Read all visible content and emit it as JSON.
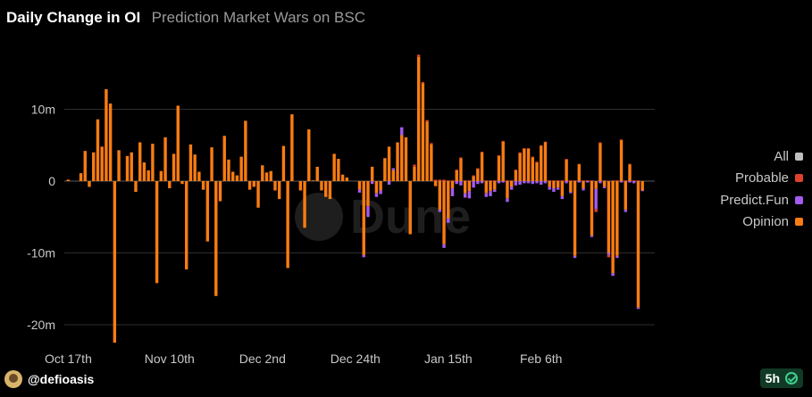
{
  "header": {
    "title": "Daily Change in OI",
    "subtitle": "Prediction Market Wars on BSC"
  },
  "footer": {
    "author": "@defioasis",
    "badge": "5h"
  },
  "watermark": "Dune",
  "colors": {
    "background": "#000000",
    "grid": "#2e2e2e",
    "opinion": "#f97c12",
    "predict_fun": "#a35bf0",
    "probable": "#e0412a",
    "all": "#bfbfbf"
  },
  "chart_data": {
    "type": "bar",
    "stacked": true,
    "title": "Daily Change in OI",
    "subtitle": "Prediction Market Wars on BSC",
    "xlabel": "",
    "ylabel": "",
    "ylim": [
      -23,
      18
    ],
    "y_ticks": [
      {
        "value": 10,
        "label": "10m"
      },
      {
        "value": 0,
        "label": "0"
      },
      {
        "value": -10,
        "label": "-10m"
      },
      {
        "value": -20,
        "label": "-20m"
      }
    ],
    "x_ticks": [
      {
        "index": 0,
        "label": "Oct 17th"
      },
      {
        "index": 24,
        "label": "Nov 10th"
      },
      {
        "index": 46,
        "label": "Dec 2nd"
      },
      {
        "index": 68,
        "label": "Dec 24th"
      },
      {
        "index": 90,
        "label": "Jan 15th"
      },
      {
        "index": 112,
        "label": "Feb 6th"
      }
    ],
    "legend": [
      "All",
      "Probable",
      "Predict.Fun",
      "Opinion"
    ],
    "legend_position": "right",
    "grid": true,
    "series": [
      {
        "name": "Opinion",
        "values": [
          0.2,
          0,
          0,
          1.1,
          4.2,
          -0.8,
          4,
          8.6,
          4.8,
          12.8,
          10.8,
          -22.5,
          4.3,
          0,
          3.5,
          4,
          -1.5,
          5.4,
          2.6,
          1.5,
          5.2,
          -14.2,
          1.4,
          6.1,
          -1,
          3.8,
          10.5,
          -0.4,
          -12.3,
          5.1,
          3.7,
          1.3,
          -1.2,
          -8.4,
          4.7,
          -16,
          -2.8,
          6.3,
          3,
          1.3,
          0.8,
          3.4,
          8.4,
          -1.2,
          -0.8,
          -3.7,
          2.2,
          1.2,
          1.4,
          -1.3,
          -2.5,
          4.9,
          -12.1,
          9.3,
          0,
          -1.3,
          -6.5,
          7.2,
          0.1,
          2,
          -1.3,
          -2.2,
          -2.5,
          3.8,
          3.1,
          0.9,
          0.5,
          0,
          0,
          -1.2,
          -10.3,
          -3.5,
          2,
          -1.7,
          -1.3,
          3.2,
          4.8,
          1.5,
          5.4,
          6.4,
          6.1,
          -7.4,
          2,
          17.3,
          13.6,
          8.3,
          5.1,
          -0.7,
          -4,
          -8.8,
          -5.2,
          -1,
          1.5,
          3.2,
          -1.7,
          -1.4,
          0.7,
          1.7,
          4,
          -1.7,
          -1.4,
          -1.2,
          3.5,
          5.5,
          -2.4,
          -0.8,
          1.5,
          3.9,
          4.5,
          4.5,
          3.3,
          2.6,
          4.9,
          5.4,
          -0.8,
          -1,
          -0.9,
          -2.1,
          3,
          -1.5,
          -10.4,
          2.3,
          -1,
          0,
          -7.6,
          -1.1,
          5.3,
          -0.8,
          -10,
          -12.8,
          -10.4,
          5.7,
          -4,
          2.3,
          0,
          -17.6,
          -1.3,
          0,
          0
        ]
      },
      {
        "name": "Predict.Fun",
        "values": [
          0,
          0,
          0,
          0,
          0,
          0,
          0,
          0,
          0,
          0,
          0,
          0,
          0,
          0,
          0,
          0,
          0,
          0,
          0,
          0,
          0,
          0,
          0,
          0,
          0,
          0,
          0,
          0,
          0,
          0,
          0,
          0,
          0,
          0,
          0,
          0,
          0,
          0,
          0,
          0,
          0,
          0,
          0,
          0,
          0,
          0,
          0,
          0,
          0,
          0,
          0,
          0,
          0,
          0,
          0,
          0,
          0,
          0,
          0,
          0,
          0,
          0,
          0,
          0,
          0,
          0,
          0,
          0,
          0,
          -0.4,
          -0.3,
          -1.5,
          -0.4,
          -0.5,
          -0.5,
          0,
          -0.5,
          0.3,
          0,
          1.1,
          0,
          0,
          0,
          0,
          0,
          0,
          0,
          0,
          -0.3,
          -0.5,
          -0.6,
          -1.1,
          -0.4,
          -0.6,
          -0.6,
          -1,
          -0.9,
          -0.4,
          -0.3,
          -0.5,
          -0.7,
          -0.3,
          -0.3,
          -0.2,
          -0.5,
          -0.4,
          -0.6,
          -0.5,
          -0.3,
          -0.3,
          -0.4,
          -0.3,
          -0.5,
          -0.3,
          -0.4,
          -0.5,
          -0.3,
          -0.4,
          -0.3,
          -0.2,
          -0.3,
          -0.2,
          -0.3,
          -0.2,
          -0.2,
          -2.8,
          -0.3,
          -0.2,
          -0.3,
          -0.4,
          -0.3,
          -0.2,
          -0.3,
          -0.2,
          -0.3,
          -0.2,
          -0.1,
          0,
          0,
          0,
          0,
          0,
          0
        ]
      },
      {
        "name": "Probable",
        "values": [
          0,
          0,
          0,
          0,
          0,
          0,
          0,
          0,
          0,
          0,
          0,
          0,
          0,
          0,
          0,
          0,
          0,
          0,
          0,
          0,
          0,
          0,
          0,
          0,
          0,
          0,
          0,
          0,
          0,
          0,
          0,
          0,
          0,
          0,
          0,
          0,
          0,
          0,
          0,
          0,
          0,
          0,
          0,
          0,
          0,
          0,
          0,
          0,
          0,
          0,
          0,
          0,
          0,
          0,
          0,
          0,
          0,
          0,
          0,
          0,
          0,
          0,
          0,
          0,
          0,
          0,
          0,
          0,
          0,
          0,
          0,
          0,
          0,
          0,
          0,
          0,
          0,
          0,
          0,
          0,
          0,
          0,
          0.3,
          0.3,
          0.2,
          0.2,
          0.2,
          0.2,
          0.2,
          0.2,
          0.1,
          0.1,
          0.1,
          0.1,
          0.1,
          0.1,
          0.1,
          0.1,
          0.1,
          0.1,
          0.1,
          0.1,
          0.1,
          0.1,
          0.1,
          0.1,
          0.1,
          0.1,
          0.1,
          0.1,
          0.1,
          0.1,
          0.1,
          0.1,
          0.1,
          0.1,
          0.1,
          0.1,
          0.1,
          0.1,
          0.1,
          0.1,
          0.1,
          0.1,
          0.1,
          -0.4,
          0.1,
          0.1,
          -0.3,
          0.1,
          0.1,
          0.1,
          0.1,
          0.1,
          0.1,
          0.1,
          0,
          0,
          0,
          0,
          0,
          0
        ]
      }
    ]
  }
}
